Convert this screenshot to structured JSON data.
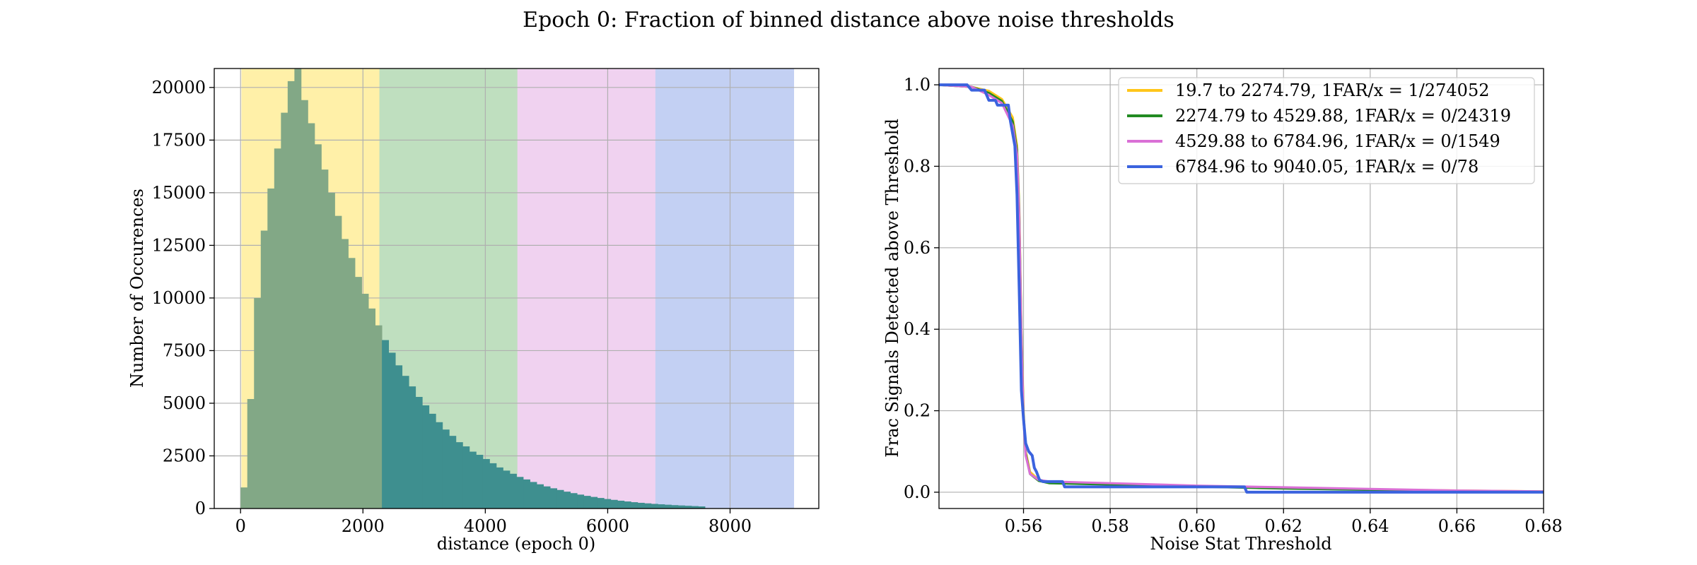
{
  "figure": {
    "title": "Epoch 0: Fraction of binned distance above noise thresholds"
  },
  "chart_data": [
    {
      "type": "bar",
      "subtype": "histogram",
      "xlabel": "distance (epoch 0)",
      "ylabel": "Number of Occurences",
      "xlim": [
        -430,
        9450
      ],
      "ylim": [
        0,
        20900
      ],
      "xticks": [
        0,
        2000,
        4000,
        6000,
        8000
      ],
      "yticks": [
        0,
        2500,
        5000,
        7500,
        10000,
        12500,
        15000,
        17500,
        20000
      ],
      "grid": true,
      "bin_width": 110,
      "bins_start": 0,
      "counts": [
        1000,
        5200,
        10000,
        13200,
        15200,
        17100,
        18800,
        20300,
        20900,
        19400,
        18300,
        17300,
        16100,
        15000,
        13900,
        12800,
        11900,
        11000,
        10200,
        9500,
        8700,
        8000,
        7400,
        6800,
        6300,
        5800,
        5300,
        4900,
        4500,
        4100,
        3750,
        3450,
        3150,
        2950,
        2700,
        2550,
        2350,
        2150,
        1950,
        1800,
        1650,
        1500,
        1380,
        1260,
        1150,
        1050,
        960,
        880,
        800,
        730,
        660,
        600,
        550,
        500,
        450,
        410,
        370,
        335,
        300,
        270,
        245,
        220,
        200,
        180,
        160,
        145,
        130,
        115,
        100
      ],
      "colors": {
        "bars_in_first_band": "#82a886",
        "bars_beyond": "#3e8f8f"
      },
      "bands": [
        {
          "from": 19.7,
          "to": 2274.79,
          "color": "#fff0a8"
        },
        {
          "from": 2274.79,
          "to": 4529.88,
          "color": "#bfdfbf"
        },
        {
          "from": 4529.88,
          "to": 6784.96,
          "color": "#f0d2f0"
        },
        {
          "from": 6784.96,
          "to": 9040.05,
          "color": "#c3d0f3"
        }
      ]
    },
    {
      "type": "line",
      "xlabel": "Noise Stat Threshold",
      "ylabel": "Frac Signals Detected above Threshold",
      "xlim": [
        0.5405,
        0.68
      ],
      "ylim": [
        -0.04,
        1.04
      ],
      "xticks": [
        "0.56",
        "0.58",
        "0.60",
        "0.62",
        "0.64",
        "0.66",
        "0.68"
      ],
      "yticks": [
        "0.0",
        "0.2",
        "0.4",
        "0.6",
        "0.8",
        "1.0"
      ],
      "grid": true,
      "legend_position": "upper-right",
      "series": [
        {
          "name": "19.7 to 2274.79, 1FAR/x = 1/274052",
          "color": "#ffc61a",
          "x": [
            0.5405,
            0.548,
            0.552,
            0.555,
            0.5575,
            0.5585,
            0.559,
            0.5595,
            0.56,
            0.5605,
            0.5615,
            0.5635,
            0.566,
            0.58,
            0.6,
            0.62,
            0.64,
            0.66,
            0.68
          ],
          "y": [
            1.0,
            0.995,
            0.985,
            0.965,
            0.92,
            0.85,
            0.7,
            0.4,
            0.2,
            0.1,
            0.05,
            0.03,
            0.025,
            0.02,
            0.015,
            0.01,
            0.007,
            0.004,
            0.002
          ]
        },
        {
          "name": "2274.79 to 4529.88, 1FAR/x = 0/24319",
          "color": "#228b22",
          "x": [
            0.5405,
            0.548,
            0.552,
            0.555,
            0.5575,
            0.5585,
            0.559,
            0.5595,
            0.56,
            0.5605,
            0.5615,
            0.5635,
            0.566,
            0.58,
            0.6,
            0.62,
            0.64,
            0.66,
            0.68
          ],
          "y": [
            1.0,
            0.995,
            0.98,
            0.96,
            0.91,
            0.84,
            0.69,
            0.39,
            0.19,
            0.095,
            0.045,
            0.028,
            0.022,
            0.019,
            0.014,
            0.009,
            0.006,
            0.003,
            0.001
          ]
        },
        {
          "name": "4529.88 to 6784.96, 1FAR/x = 0/1549",
          "color": "#da70d6",
          "x": [
            0.5405,
            0.548,
            0.552,
            0.555,
            0.5575,
            0.5585,
            0.559,
            0.5595,
            0.56,
            0.5605,
            0.5615,
            0.5635,
            0.566,
            0.57,
            0.58,
            0.6,
            0.61,
            0.62,
            0.64,
            0.66,
            0.68
          ],
          "y": [
            1.0,
            0.995,
            0.975,
            0.955,
            0.9,
            0.83,
            0.68,
            0.38,
            0.18,
            0.09,
            0.045,
            0.03,
            0.026,
            0.025,
            0.022,
            0.016,
            0.014,
            0.012,
            0.008,
            0.004,
            0.002
          ]
        },
        {
          "name": "6784.96 to 9040.05, 1FAR/x = 0/78",
          "color": "#3b63de",
          "x": [
            0.5405,
            0.547,
            0.548,
            0.551,
            0.552,
            0.5535,
            0.554,
            0.5565,
            0.557,
            0.5575,
            0.558,
            0.5585,
            0.559,
            0.5595,
            0.56,
            0.5605,
            0.5612,
            0.562,
            0.5625,
            0.563,
            0.5637,
            0.5645,
            0.569,
            0.5695,
            0.611,
            0.6115,
            0.68
          ],
          "y": [
            1.0,
            1.0,
            0.987,
            0.987,
            0.962,
            0.962,
            0.95,
            0.95,
            0.91,
            0.88,
            0.85,
            0.73,
            0.5,
            0.25,
            0.18,
            0.12,
            0.1,
            0.09,
            0.06,
            0.05,
            0.03,
            0.026,
            0.026,
            0.013,
            0.013,
            0.0,
            0.0
          ]
        }
      ]
    }
  ]
}
